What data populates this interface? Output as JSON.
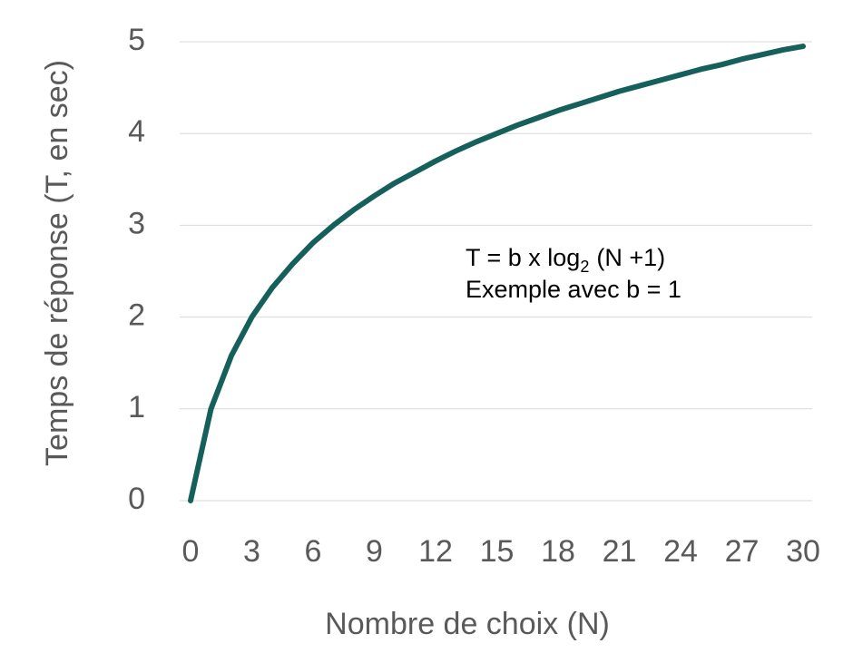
{
  "chart_data": {
    "type": "line",
    "x_label": "Nombre de choix (N)",
    "y_label": "Temps de réponse (T, en sec)",
    "annotation": {
      "formula": [
        "T = b x log",
        "2",
        "(N +1)"
      ],
      "note": "Exemple avec b = 1"
    },
    "x": [
      0,
      1,
      2,
      3,
      4,
      5,
      6,
      7,
      8,
      9,
      10,
      11,
      12,
      13,
      14,
      15,
      16,
      17,
      18,
      19,
      20,
      21,
      22,
      23,
      24,
      25,
      26,
      27,
      28,
      29,
      30
    ],
    "series": [
      {
        "color": "#15605b",
        "values": [
          0,
          1,
          1.58,
          2,
          2.32,
          2.58,
          2.81,
          3,
          3.17,
          3.32,
          3.46,
          3.58,
          3.7,
          3.81,
          3.91,
          4,
          4.09,
          4.17,
          4.25,
          4.32,
          4.39,
          4.46,
          4.52,
          4.58,
          4.64,
          4.7,
          4.75,
          4.81,
          4.86,
          4.91,
          4.95
        ]
      }
    ],
    "xlim": [
      0,
      30
    ],
    "xticks": [
      0,
      3,
      6,
      9,
      12,
      15,
      18,
      21,
      24,
      27,
      30
    ],
    "ylim": [
      0,
      5
    ],
    "yticks": [
      0,
      1,
      2,
      3,
      4,
      5
    ],
    "grid": true
  }
}
